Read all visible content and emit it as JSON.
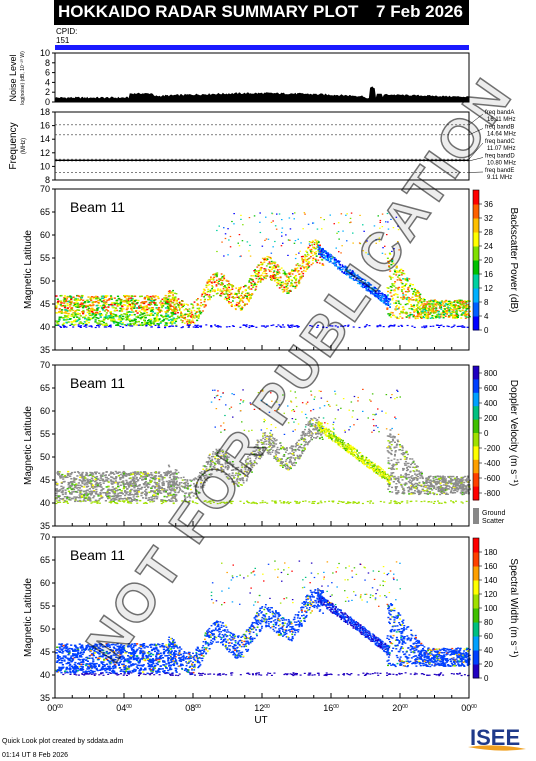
{
  "header": {
    "title": "HOKKAIDO RADAR SUMMARY PLOT",
    "date": "7 Feb 2026",
    "cpid_label": "CPID:",
    "cpid_value": "151"
  },
  "noise": {
    "ylabel": "Noise Level",
    "ysub": "log(noise) (dB, 10⁻²⁰ W)",
    "ylim": [
      0,
      10
    ],
    "ticks": [
      "0",
      "2",
      "4",
      "6",
      "8",
      "10"
    ]
  },
  "frequency": {
    "ylabel": "Frequency",
    "yunit": "(MHz)",
    "ylim": [
      8,
      18
    ],
    "ticks": [
      "8",
      "10",
      "12",
      "14",
      "16",
      "18"
    ],
    "bands": [
      {
        "name": "freq bandA",
        "value": "16.11 MHz",
        "level": 16.11
      },
      {
        "name": "freq bandB",
        "value": "14.64 MHz",
        "level": 14.64
      },
      {
        "name": "freq bandC",
        "value": "11.07 MHz",
        "level": 11.07
      },
      {
        "name": "freq bandD",
        "value": "10.80 MHz",
        "level": 10.8
      },
      {
        "name": "freq bandE",
        "value": "9.11 MHz",
        "level": 9.11
      }
    ]
  },
  "chart_data": [
    {
      "type": "heatmap",
      "title": "Beam 11",
      "ylabel": "Magnetic Latitude",
      "ylim": [
        35,
        70
      ],
      "yticks": [
        "35",
        "40",
        "45",
        "50",
        "55",
        "60",
        "65",
        "70"
      ],
      "colorbar_label": "Backscatter Power (dB)",
      "colorbar_ticks": [
        "0",
        "4",
        "8",
        "12",
        "16",
        "20",
        "24",
        "28",
        "32",
        "36"
      ],
      "colorbar_colors": [
        "#0000ff",
        "#0060ff",
        "#00b0ff",
        "#00d0a0",
        "#00c000",
        "#80e000",
        "#ffff00",
        "#ffc000",
        "#ff6000",
        "#ff0000"
      ]
    },
    {
      "type": "heatmap",
      "title": "Beam 11",
      "ylabel": "Magnetic Latitude",
      "ylim": [
        35,
        70
      ],
      "yticks": [
        "35",
        "40",
        "45",
        "50",
        "55",
        "60",
        "65",
        "70"
      ],
      "colorbar_label": "Doppler Velocity (m s⁻¹)",
      "colorbar_ticks": [
        "800",
        "600",
        "400",
        "200",
        "0",
        "-200",
        "-400",
        "-600",
        "-800"
      ],
      "colorbar_colors": [
        "#2000c0",
        "#0040ff",
        "#00a0ff",
        "#00c080",
        "#40c000",
        "#a0e000",
        "#ffff00",
        "#ffa000",
        "#ff4000",
        "#ff0000"
      ],
      "ground_scatter_label": "Ground Scatter",
      "ground_scatter_color": "#888888"
    },
    {
      "type": "heatmap",
      "title": "Beam 11",
      "ylabel": "Magnetic Latitude",
      "ylim": [
        35,
        70
      ],
      "yticks": [
        "35",
        "40",
        "45",
        "50",
        "55",
        "60",
        "65",
        "70"
      ],
      "colorbar_label": "Spectral Width (m s⁻¹)",
      "colorbar_ticks": [
        "0",
        "20",
        "40",
        "60",
        "80",
        "100",
        "120",
        "140",
        "160",
        "180"
      ],
      "colorbar_colors": [
        "#2000c0",
        "#0040ff",
        "#00a0ff",
        "#00c080",
        "#40c000",
        "#a0e000",
        "#ffff00",
        "#ffa000",
        "#ff4000",
        "#ff0000"
      ]
    }
  ],
  "xaxis": {
    "label": "UT",
    "ticks": [
      {
        "h": "00",
        "m": "00"
      },
      {
        "h": "04",
        "m": "00"
      },
      {
        "h": "08",
        "m": "00"
      },
      {
        "h": "12",
        "m": "00"
      },
      {
        "h": "16",
        "m": "00"
      },
      {
        "h": "20",
        "m": "00"
      },
      {
        "h": "00",
        "m": "00"
      }
    ]
  },
  "footer": {
    "line1": "Quick Look plot created by sddata.adm",
    "line2": "01:14 UT 8 Feb 2026"
  },
  "logo_text": "ISEE",
  "watermark": "NOT FOR PUBLICATION"
}
